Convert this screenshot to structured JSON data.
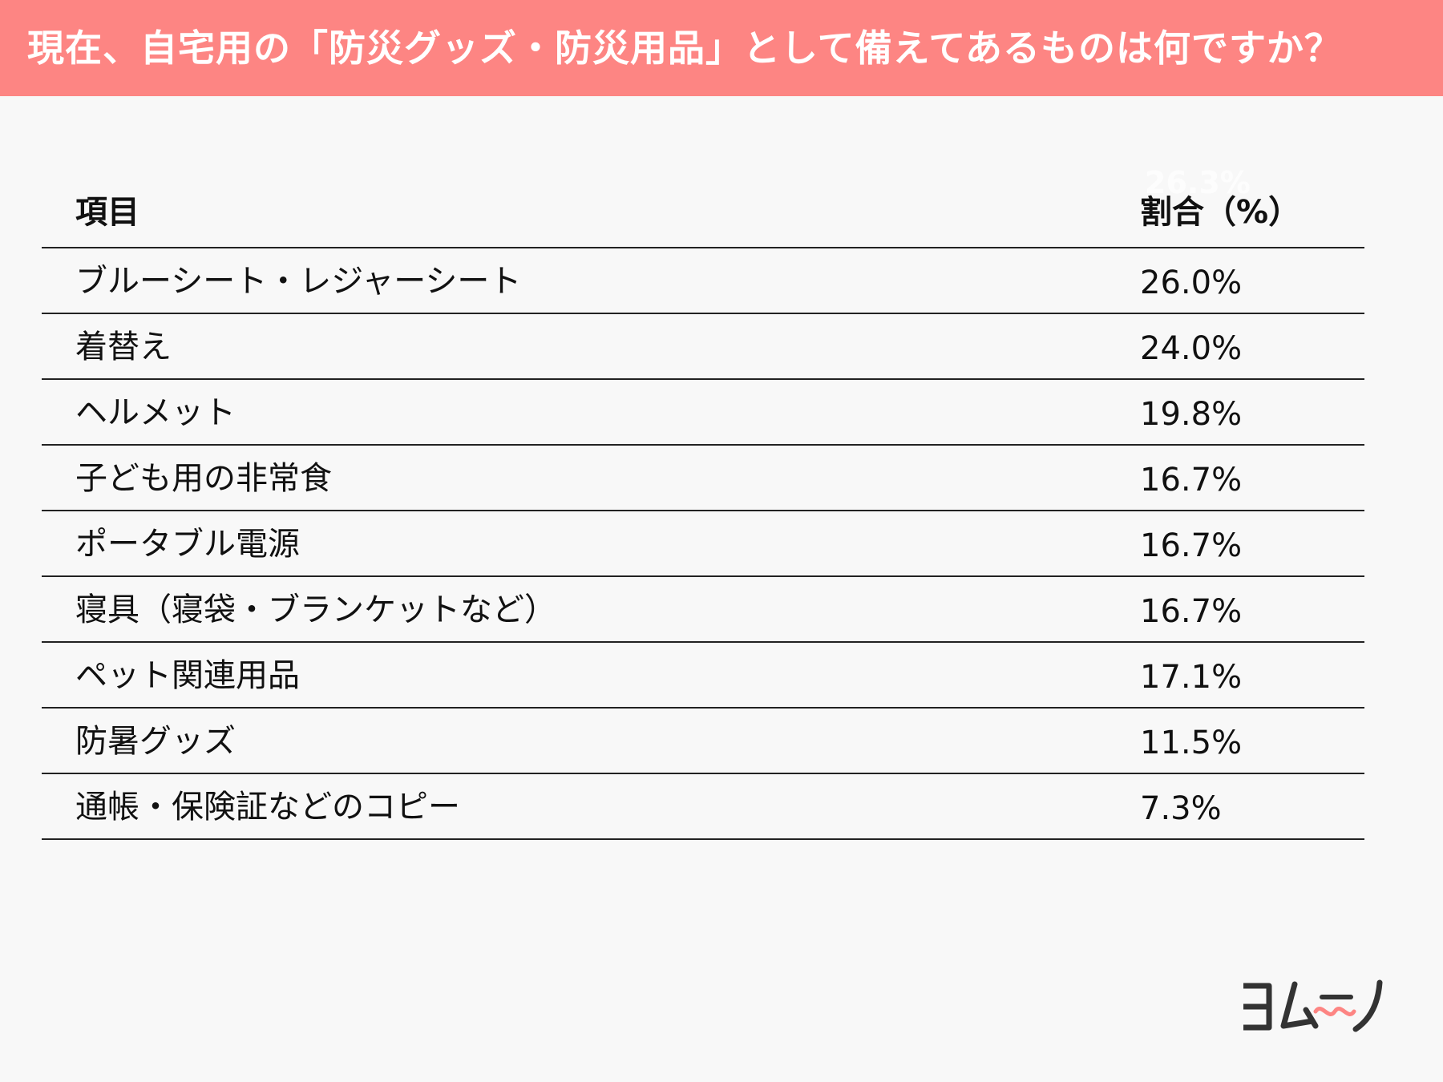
{
  "header": {
    "title": "現在、自宅用の「防災グッズ・防災用品」として備えてあるものは何ですか？"
  },
  "ghost_label": "26.3%",
  "chart_data": {
    "type": "table",
    "title": "現在、自宅用の「防災グッズ・防災用品」として備えてあるものは何ですか？",
    "columns": [
      "項目",
      "割合（%）"
    ],
    "rows": [
      {
        "item": "ブルーシート・レジャーシート",
        "value": "26.0%"
      },
      {
        "item": "着替え",
        "value": "24.0%"
      },
      {
        "item": "ヘルメット",
        "value": "19.8%"
      },
      {
        "item": "子ども用の非常食",
        "value": "16.7%"
      },
      {
        "item": "ポータブル電源",
        "value": "16.7%"
      },
      {
        "item": "寝具（寝袋・ブランケットなど）",
        "value": "16.7%"
      },
      {
        "item": "ペット関連用品",
        "value": "17.1%"
      },
      {
        "item": "防暑グッズ",
        "value": "11.5%"
      },
      {
        "item": "通帳・保険証などのコピー",
        "value": "7.3%"
      }
    ]
  },
  "colors": {
    "header_bg": "#fd8583",
    "header_text": "#ffffff",
    "rule": "#222222",
    "logo_dark": "#333333",
    "logo_accent": "#fd8583"
  },
  "logo": {
    "name": "yomuno-logo",
    "text": "ヨムーノ"
  }
}
